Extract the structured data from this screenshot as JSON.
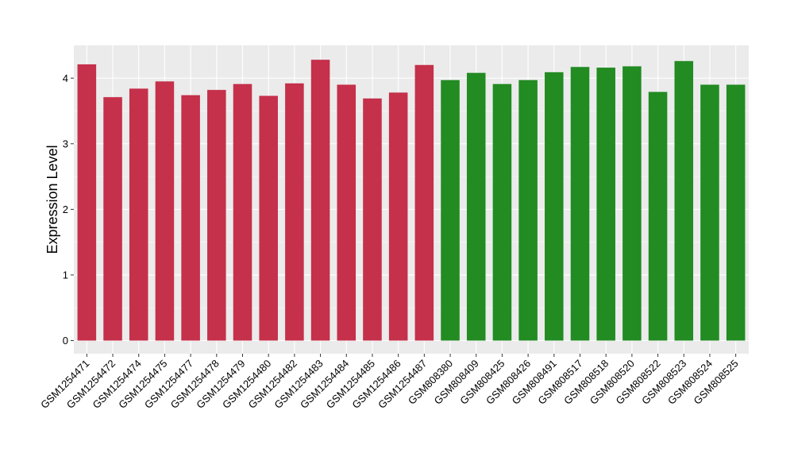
{
  "chart_data": {
    "type": "bar",
    "title": "",
    "xlabel": "",
    "ylabel": "Expression Level",
    "ylim": [
      -0.2,
      4.5
    ],
    "yticks": [
      0,
      1,
      2,
      3,
      4
    ],
    "grid": true,
    "legend": "none",
    "colors": {
      "panel_background": "#ebebeb",
      "grid_major": "#ffffff",
      "group_1": "#c5304a",
      "group_2": "#228b22"
    },
    "categories": [
      "GSM1254471",
      "GSM1254472",
      "GSM1254474",
      "GSM1254475",
      "GSM1254477",
      "GSM1254478",
      "GSM1254479",
      "GSM1254480",
      "GSM1254482",
      "GSM1254483",
      "GSM1254484",
      "GSM1254485",
      "GSM1254486",
      "GSM1254487",
      "GSM808380",
      "GSM808409",
      "GSM808425",
      "GSM808426",
      "GSM808491",
      "GSM808517",
      "GSM808518",
      "GSM808520",
      "GSM808522",
      "GSM808523",
      "GSM808524",
      "GSM808525"
    ],
    "values": [
      4.21,
      3.71,
      3.84,
      3.95,
      3.74,
      3.82,
      3.91,
      3.73,
      3.92,
      4.28,
      3.9,
      3.69,
      3.78,
      4.2,
      3.97,
      4.08,
      3.91,
      3.97,
      4.09,
      4.17,
      4.16,
      4.18,
      3.79,
      4.26,
      3.9,
      3.9
    ],
    "group": [
      1,
      1,
      1,
      1,
      1,
      1,
      1,
      1,
      1,
      1,
      1,
      1,
      1,
      1,
      2,
      2,
      2,
      2,
      2,
      2,
      2,
      2,
      2,
      2,
      2,
      2
    ]
  }
}
